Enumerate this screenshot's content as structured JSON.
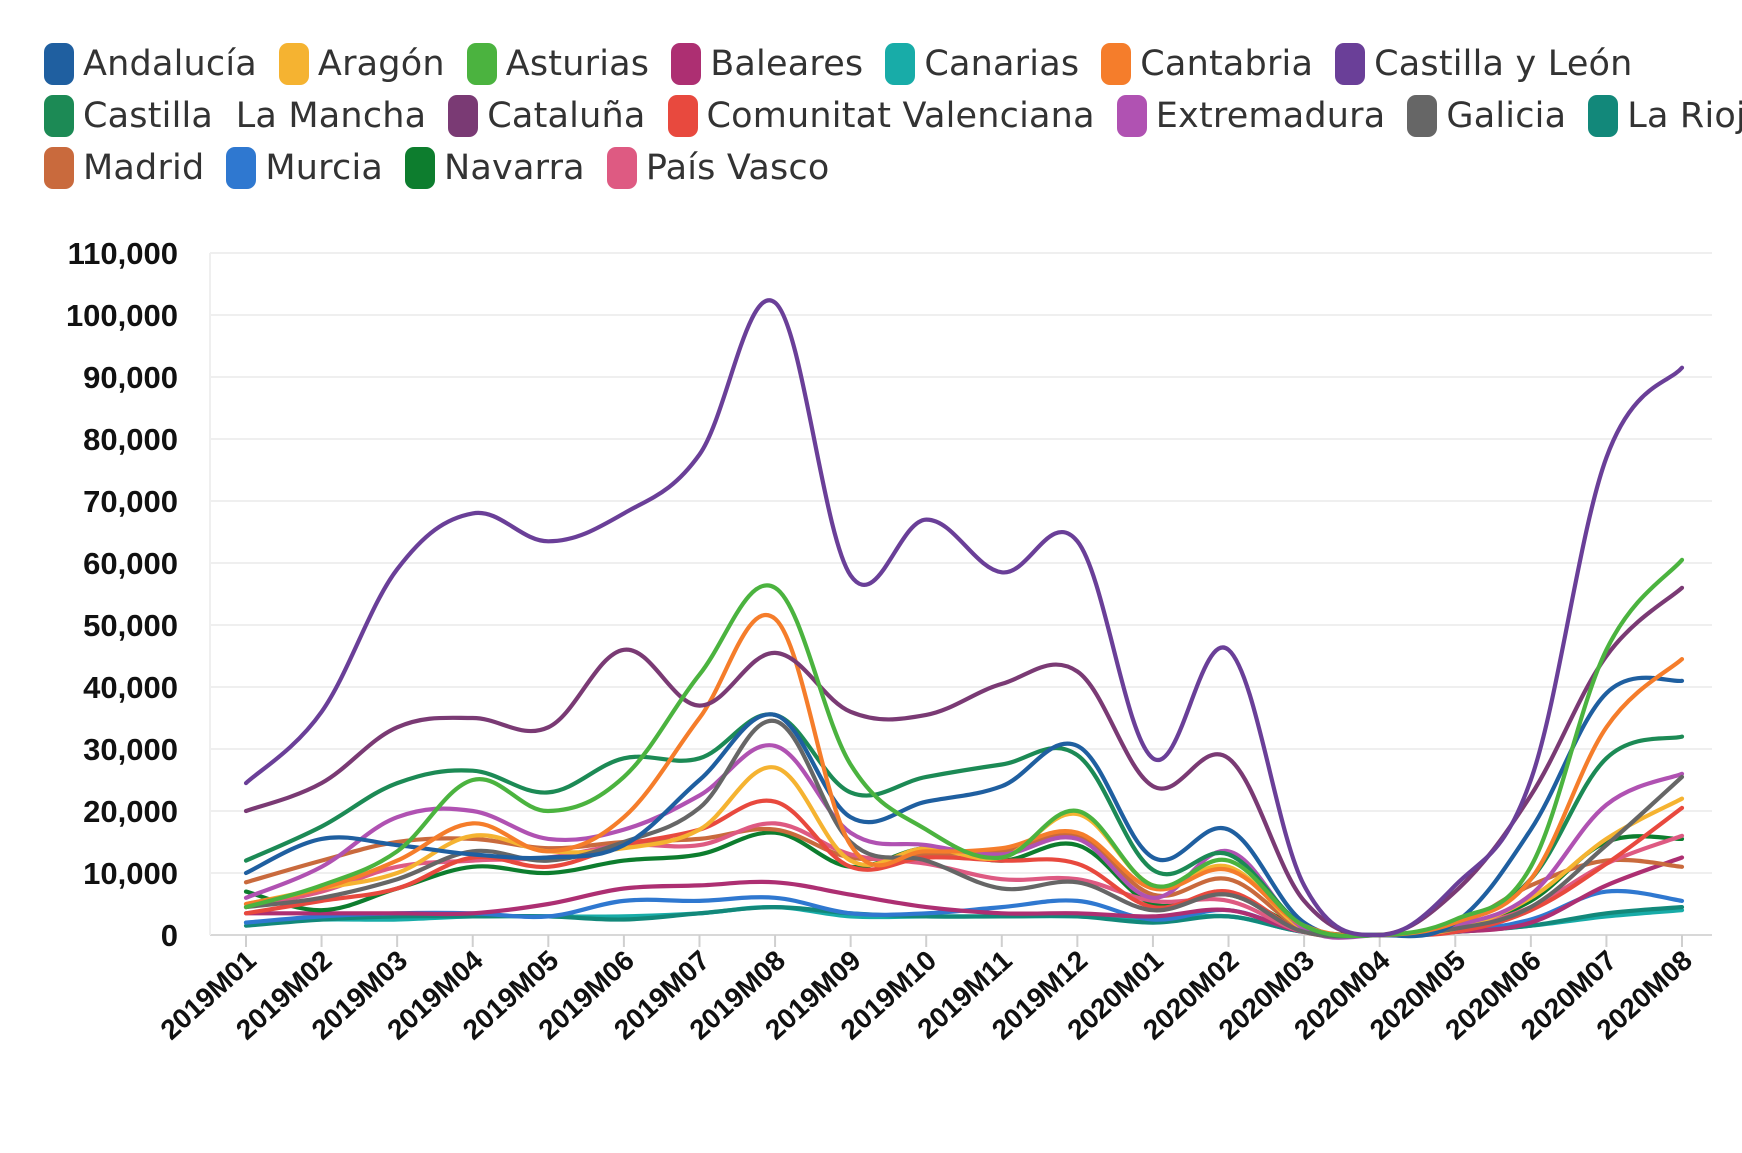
{
  "chart_data": {
    "type": "line",
    "title": "",
    "xlabel": "",
    "ylabel": "",
    "ylim": [
      0,
      110000
    ],
    "yticks": [
      0,
      10000,
      20000,
      30000,
      40000,
      50000,
      60000,
      70000,
      80000,
      90000,
      100000,
      110000
    ],
    "ytick_labels": [
      "0",
      "10,000",
      "20,000",
      "30,000",
      "40,000",
      "50,000",
      "60,000",
      "70,000",
      "80,000",
      "90,000",
      "100,000",
      "110,000"
    ],
    "grid": true,
    "legend_position": "top",
    "categories": [
      "2019M01",
      "2019M02",
      "2019M03",
      "2019M04",
      "2019M05",
      "2019M06",
      "2019M07",
      "2019M08",
      "2019M09",
      "2019M10",
      "2019M11",
      "2019M12",
      "2020M01",
      "2020M02",
      "2020M03",
      "2020M04",
      "2020M05",
      "2020M06",
      "2020M07",
      "2020M08"
    ],
    "series": [
      {
        "name": "Andalucía",
        "color": "#1f5fa0",
        "values": [
          10000,
          15500,
          14500,
          13000,
          12500,
          14500,
          25000,
          35500,
          19000,
          21500,
          24000,
          30500,
          12500,
          17000,
          2000,
          0,
          2000,
          17000,
          39000,
          41000
        ]
      },
      {
        "name": "Aragón",
        "color": "#f5b331",
        "values": [
          5000,
          7500,
          10000,
          16000,
          13500,
          14000,
          17000,
          27000,
          12000,
          14000,
          12500,
          19500,
          8000,
          11000,
          1000,
          0,
          1000,
          6000,
          15500,
          22000
        ]
      },
      {
        "name": "Asturias",
        "color": "#4bb33f",
        "values": [
          4500,
          8000,
          13500,
          25000,
          20000,
          25500,
          42000,
          56000,
          27500,
          17000,
          12500,
          20000,
          8000,
          12000,
          1500,
          0,
          2500,
          11000,
          46000,
          60500
        ]
      },
      {
        "name": "Baleares",
        "color": "#ad2f72",
        "values": [
          3500,
          3500,
          3500,
          3500,
          5000,
          7500,
          8000,
          8500,
          6500,
          4500,
          3500,
          3500,
          3000,
          4000,
          500,
          0,
          500,
          2000,
          8000,
          12500
        ]
      },
      {
        "name": "Canarias",
        "color": "#18aca8",
        "values": [
          2000,
          2500,
          2500,
          3000,
          3000,
          3000,
          3500,
          4500,
          3000,
          3000,
          3000,
          3000,
          2500,
          3000,
          500,
          0,
          500,
          1500,
          3000,
          4000
        ]
      },
      {
        "name": "Cantabria",
        "color": "#f57d2b",
        "values": [
          5000,
          7500,
          12000,
          18000,
          13500,
          19000,
          35000,
          51000,
          14500,
          13500,
          14000,
          16500,
          7500,
          10500,
          1500,
          0,
          2000,
          9000,
          33500,
          44500
        ]
      },
      {
        "name": "Castilla y León",
        "color": "#6a3f98",
        "values": [
          24500,
          36000,
          59000,
          68000,
          63500,
          68000,
          77500,
          102000,
          58000,
          67000,
          58500,
          63500,
          28500,
          46000,
          8000,
          0,
          8000,
          25000,
          77000,
          91500
        ]
      },
      {
        "name": "Castilla  La Mancha",
        "color": "#1c8a55",
        "values": [
          12000,
          17500,
          24500,
          26500,
          23000,
          28500,
          28500,
          35500,
          23000,
          25500,
          27500,
          29000,
          10500,
          13000,
          1500,
          0,
          2000,
          9000,
          28500,
          32000
        ]
      },
      {
        "name": "Cataluña",
        "color": "#7a3a74",
        "values": [
          20000,
          24500,
          33500,
          35000,
          33500,
          46000,
          37000,
          45500,
          36000,
          35500,
          40500,
          42500,
          24000,
          28500,
          5500,
          0,
          7000,
          22500,
          45000,
          56000
        ]
      },
      {
        "name": "Comunitat Valenciana",
        "color": "#e8493e",
        "values": [
          3500,
          5500,
          7500,
          12500,
          11000,
          14500,
          17000,
          21500,
          11000,
          12500,
          12000,
          11500,
          4500,
          7000,
          500,
          0,
          500,
          4000,
          11500,
          20500
        ]
      },
      {
        "name": "Extremadura",
        "color": "#b052b2",
        "values": [
          6000,
          11000,
          19000,
          20000,
          15500,
          17000,
          22500,
          30500,
          16500,
          14500,
          13000,
          15500,
          6000,
          13500,
          1000,
          0,
          1500,
          6500,
          21000,
          26000
        ]
      },
      {
        "name": "Galicia",
        "color": "#666666",
        "values": [
          4500,
          6000,
          9000,
          13500,
          12000,
          15000,
          20500,
          34500,
          15000,
          12000,
          7500,
          8500,
          4000,
          6500,
          500,
          0,
          1000,
          4500,
          14500,
          25500
        ]
      },
      {
        "name": "La Rioja",
        "color": "#12887a",
        "values": [
          1500,
          2500,
          3000,
          3000,
          3000,
          2500,
          3500,
          4500,
          3500,
          3000,
          3000,
          3000,
          2000,
          3000,
          500,
          0,
          500,
          1500,
          3500,
          4500
        ]
      },
      {
        "name": "Madrid",
        "color": "#c96a3d",
        "values": [
          8500,
          12000,
          15000,
          15500,
          14000,
          15000,
          15500,
          17000,
          12500,
          13000,
          13500,
          16000,
          6500,
          9000,
          1000,
          0,
          1500,
          8000,
          12000,
          11000
        ]
      },
      {
        "name": "Murcia",
        "color": "#2f78d0",
        "values": [
          2000,
          3000,
          3500,
          3500,
          3000,
          5500,
          5500,
          6000,
          3500,
          3500,
          4500,
          5500,
          2500,
          4000,
          500,
          0,
          500,
          2500,
          7000,
          5500
        ]
      },
      {
        "name": "Navarra",
        "color": "#0d7d2e",
        "values": [
          7000,
          4000,
          7500,
          11000,
          10000,
          12000,
          13000,
          16500,
          11000,
          14000,
          12000,
          14500,
          5000,
          6500,
          1000,
          0,
          1000,
          5500,
          15000,
          15500
        ]
      },
      {
        "name": "País Vasco",
        "color": "#de5a82",
        "values": [
          4500,
          7000,
          11000,
          12000,
          12500,
          14500,
          14500,
          18000,
          13000,
          11500,
          9000,
          9000,
          5500,
          5500,
          500,
          0,
          1000,
          4500,
          11500,
          16000
        ]
      }
    ]
  }
}
